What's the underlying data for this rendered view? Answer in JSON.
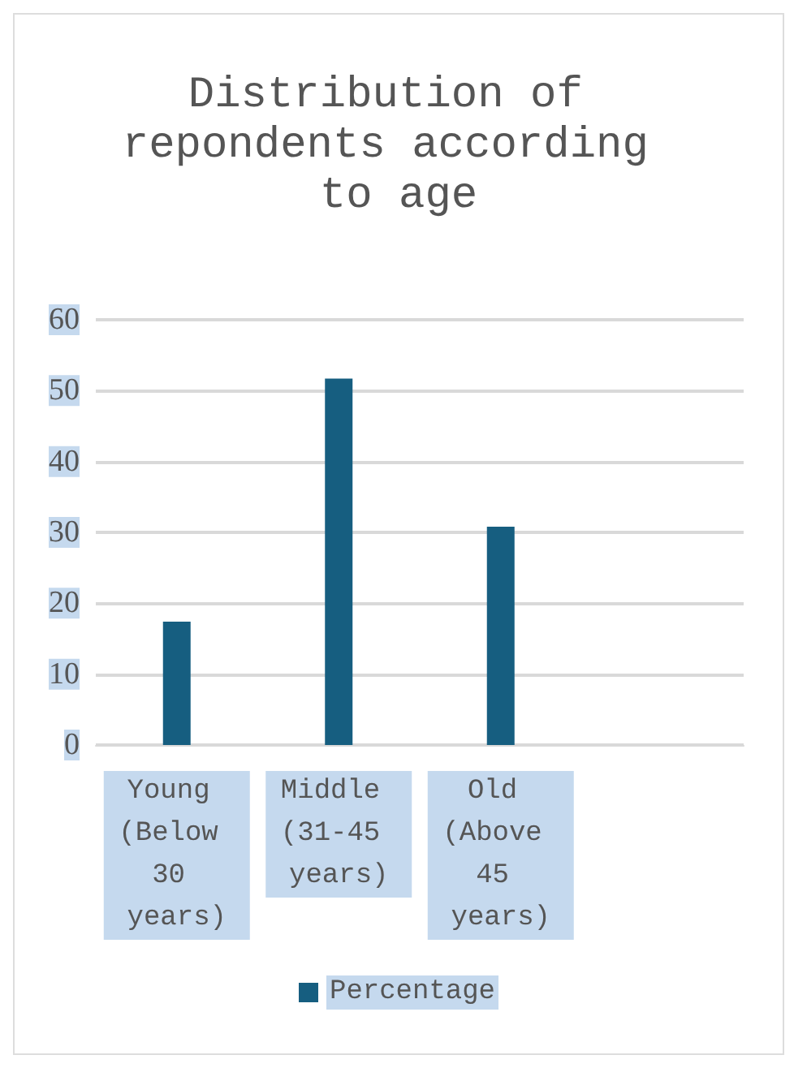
{
  "chart_data": {
    "type": "bar",
    "title": "Distribution of repondents according to age",
    "categories": [
      "Young (Below 30 years)",
      "Middle (31-45 years)",
      "Old (Above 45 years)",
      null
    ],
    "series": [
      {
        "name": "Percentage",
        "color": "#165e80",
        "values": [
          17.4,
          51.7,
          30.8,
          null
        ]
      }
    ],
    "ylim": [
      0,
      60
    ],
    "yticks": [
      0,
      10,
      20,
      30,
      40,
      50,
      60
    ],
    "grid": "y",
    "legend": "bottom"
  }
}
